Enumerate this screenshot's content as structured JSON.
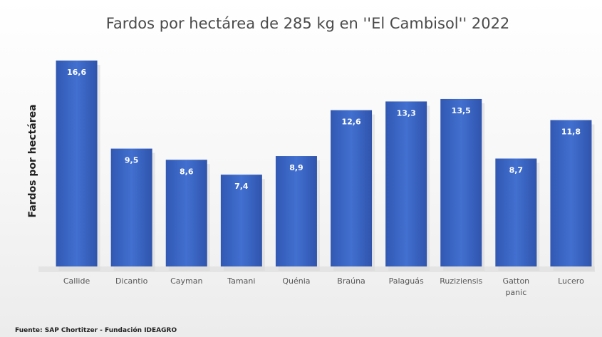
{
  "chart_data": {
    "type": "bar",
    "title": "Fardos por hectárea de 285 kg en ''El Cambisol'' 2022",
    "ylabel": "Fardos por hectárea",
    "xlabel": "",
    "categories": [
      "Callide",
      "Dicantio",
      "Cayman",
      "Tamani",
      "Quénia",
      "Braúna",
      "Palaguás",
      "Ruziziensis",
      "Gatton panic",
      "Lucero"
    ],
    "category_lines": [
      [
        "Callide"
      ],
      [
        "Dicantio"
      ],
      [
        "Cayman"
      ],
      [
        "Tamani"
      ],
      [
        "Quénia"
      ],
      [
        "Braúna"
      ],
      [
        "Palaguás"
      ],
      [
        "Ruziziensis"
      ],
      [
        "Gatton",
        "panic"
      ],
      [
        "Lucero"
      ]
    ],
    "values": [
      16.6,
      9.5,
      8.6,
      7.4,
      8.9,
      12.6,
      13.3,
      13.5,
      8.7,
      11.8
    ],
    "value_labels": [
      "16,6",
      "9,5",
      "8,6",
      "7,4",
      "8,9",
      "12,6",
      "13,3",
      "13,5",
      "8,7",
      "11,8"
    ],
    "ylim": [
      0,
      17
    ],
    "grid": false,
    "legend": "none",
    "bar_color": "#3a63bf"
  },
  "source": "Fuente: SAP Chortitzer - Fundación IDEAGRO"
}
